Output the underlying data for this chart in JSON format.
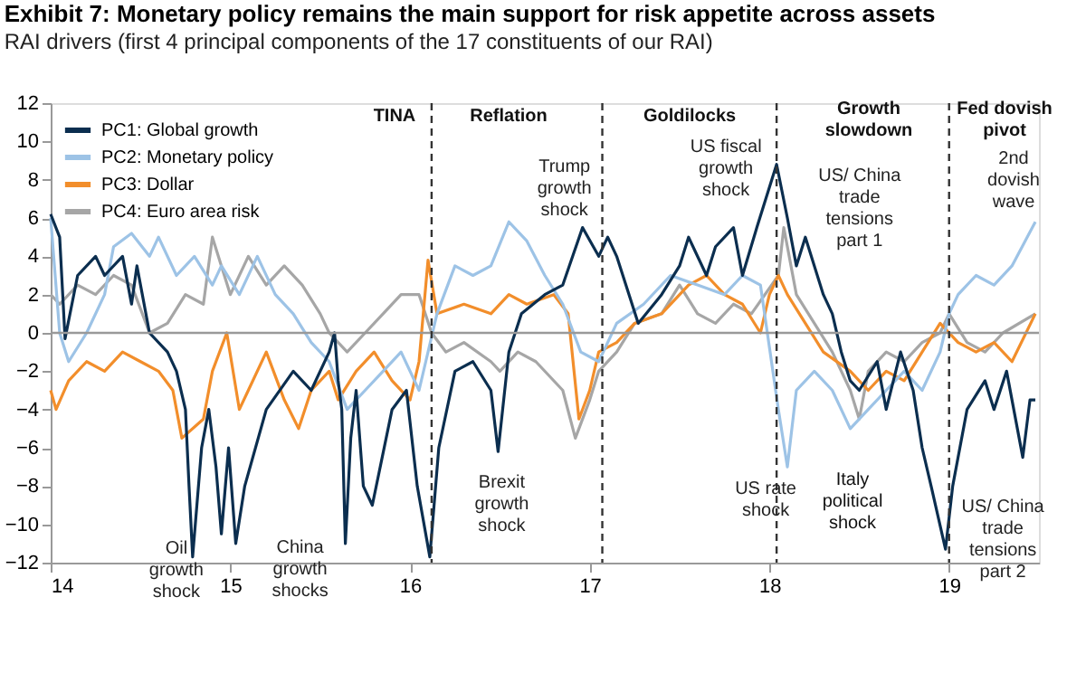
{
  "chart_data": {
    "type": "line",
    "title": "Exhibit 7: Monetary policy remains the main support for risk appetite across assets",
    "subtitle": "RAI drivers (first 4 principal components of the 17 constituents of our RAI)",
    "xlim": [
      14,
      19.5
    ],
    "xticks": [
      14,
      15,
      16,
      17,
      18,
      19
    ],
    "ylim": [
      -12,
      12
    ],
    "yticks": [
      -12,
      -10,
      -8,
      -6,
      -4,
      -2,
      0,
      2,
      4,
      6,
      8,
      10,
      12
    ],
    "grid": false,
    "legend": "top left",
    "line_style": "solid",
    "series": [
      {
        "name": "PC1: Global growth",
        "color": "#0b2e4f",
        "x": [
          14.0,
          14.05,
          14.08,
          14.15,
          14.25,
          14.3,
          14.4,
          14.45,
          14.48,
          14.55,
          14.65,
          14.7,
          14.75,
          14.77,
          14.79,
          14.84,
          14.88,
          14.92,
          14.95,
          14.99,
          15.03,
          15.08,
          15.2,
          15.35,
          15.45,
          15.55,
          15.58,
          15.6,
          15.62,
          15.64,
          15.67,
          15.7,
          15.74,
          15.79,
          15.9,
          15.98,
          16.04,
          16.11,
          16.16,
          16.25,
          16.35,
          16.45,
          16.49,
          16.55,
          16.62,
          16.75,
          16.85,
          16.96,
          17.05,
          17.1,
          17.15,
          17.27,
          17.4,
          17.5,
          17.55,
          17.65,
          17.7,
          17.8,
          17.85,
          17.93,
          17.98,
          18.04,
          18.1,
          18.15,
          18.2,
          18.3,
          18.35,
          18.4,
          18.45,
          18.5,
          18.6,
          18.65,
          18.73,
          18.8,
          18.85,
          18.9,
          18.98,
          19.02,
          19.1,
          19.2,
          19.25,
          19.32,
          19.41,
          19.45,
          19.48
        ],
        "values": [
          6.2,
          5,
          -0.3,
          3,
          4,
          3,
          4,
          1.5,
          3.5,
          0,
          -1,
          -2,
          -4,
          -8,
          -11.7,
          -6,
          -4,
          -7,
          -10.5,
          -6,
          -11,
          -8,
          -4,
          -2,
          -3,
          -1,
          0,
          -2.5,
          -4,
          -11,
          -5.5,
          -3,
          -8,
          -9,
          -4,
          -3,
          -8,
          -11.7,
          -6,
          -2,
          -1.5,
          -3,
          -6.2,
          -1,
          1,
          2,
          2.5,
          5.5,
          4,
          5,
          4,
          0.5,
          2,
          3.5,
          5,
          3,
          4.5,
          5.5,
          3,
          5.5,
          7,
          8.8,
          6,
          3.5,
          5,
          2,
          1,
          -1,
          -2.5,
          -3,
          -1.5,
          -4,
          -1,
          -3,
          -6,
          -8,
          -11.3,
          -8,
          -4,
          -2.5,
          -4,
          -2,
          -6.5,
          -3.5,
          -3.5
        ]
      },
      {
        "name": "PC2: Monetary policy",
        "color": "#9dc3e6",
        "x": [
          14.0,
          14.05,
          14.1,
          14.2,
          14.3,
          14.35,
          14.45,
          14.55,
          14.6,
          14.7,
          14.8,
          14.9,
          14.95,
          15.05,
          15.15,
          15.25,
          15.35,
          15.45,
          15.55,
          15.65,
          15.75,
          15.85,
          15.95,
          16.05,
          16.15,
          16.25,
          16.35,
          16.45,
          16.55,
          16.65,
          16.75,
          16.85,
          16.95,
          17.05,
          17.15,
          17.3,
          17.45,
          17.6,
          17.75,
          17.85,
          17.95,
          18.05,
          18.1,
          18.15,
          18.25,
          18.35,
          18.45,
          18.55,
          18.65,
          18.75,
          18.85,
          18.95,
          19.0,
          19.05,
          19.15,
          19.25,
          19.35,
          19.48
        ],
        "values": [
          6,
          0,
          -1.5,
          0,
          2,
          4.5,
          5.2,
          4,
          5,
          3,
          4,
          2.5,
          3.5,
          2,
          4,
          2,
          1,
          -0.5,
          -1.5,
          -4,
          -3,
          -2,
          -1,
          -3,
          1,
          3.5,
          3,
          3.5,
          5.8,
          4.8,
          3,
          1.5,
          -1,
          -1.5,
          0.5,
          1.5,
          3,
          2.5,
          2,
          3,
          2.5,
          -4,
          -7,
          -3,
          -2,
          -3,
          -5,
          -4,
          -3,
          -2,
          -3,
          -1,
          1,
          2,
          3,
          2.5,
          3.5,
          5.8
        ]
      },
      {
        "name": "PC3: Dollar",
        "color": "#f28e2b",
        "x": [
          14.0,
          14.03,
          14.1,
          14.2,
          14.3,
          14.4,
          14.5,
          14.6,
          14.68,
          14.73,
          14.85,
          14.9,
          14.98,
          15.05,
          15.1,
          15.2,
          15.3,
          15.38,
          15.45,
          15.55,
          15.6,
          15.7,
          15.8,
          15.9,
          16.0,
          16.05,
          16.1,
          16.15,
          16.3,
          16.45,
          16.55,
          16.65,
          16.8,
          16.88,
          16.94,
          17.0,
          17.05,
          17.15,
          17.25,
          17.4,
          17.55,
          17.65,
          17.75,
          17.85,
          17.95,
          18.0,
          18.05,
          18.1,
          18.2,
          18.3,
          18.45,
          18.55,
          18.65,
          18.75,
          18.85,
          18.95,
          19.05,
          19.15,
          19.25,
          19.35,
          19.48
        ],
        "values": [
          -3,
          -4,
          -2.5,
          -1.5,
          -2,
          -1,
          -1.5,
          -2,
          -3,
          -5.5,
          -4.5,
          -2,
          0,
          -4,
          -3,
          -1,
          -3.5,
          -5,
          -3,
          -2,
          -3.5,
          -2,
          -1,
          -2.5,
          -3.5,
          -1.5,
          3.8,
          1,
          1.5,
          1,
          2,
          1.5,
          2,
          1,
          -4.5,
          -3,
          -1,
          -0.5,
          0.5,
          1,
          2.5,
          3,
          2,
          1.5,
          0,
          2,
          3,
          2,
          0.5,
          -1,
          -2,
          -3,
          -2,
          -2.5,
          -1,
          0.5,
          -0.5,
          -1,
          -0.5,
          -1.5,
          1
        ]
      },
      {
        "name": "PC4: Euro area risk",
        "color": "#a6a6a6",
        "x": [
          14.0,
          14.05,
          14.15,
          14.25,
          14.35,
          14.45,
          14.55,
          14.65,
          14.75,
          14.85,
          14.9,
          15.0,
          15.1,
          15.2,
          15.3,
          15.4,
          15.5,
          15.55,
          15.65,
          15.75,
          15.85,
          15.95,
          16.05,
          16.12,
          16.2,
          16.3,
          16.45,
          16.5,
          16.6,
          16.7,
          16.85,
          16.92,
          17.0,
          17.05,
          17.15,
          17.25,
          17.4,
          17.5,
          17.6,
          17.7,
          17.8,
          17.9,
          18.05,
          18.08,
          18.15,
          18.25,
          18.35,
          18.45,
          18.5,
          18.55,
          18.65,
          18.75,
          18.85,
          18.95,
          19.0,
          19.1,
          19.2,
          19.3,
          19.48
        ],
        "values": [
          2,
          1.5,
          2.5,
          2,
          3,
          2.5,
          0,
          0.5,
          2,
          1.5,
          5,
          2,
          4,
          2.5,
          3.5,
          2.5,
          1,
          0,
          -1,
          0,
          1,
          2,
          2,
          0,
          -1,
          -0.5,
          -1.5,
          -2,
          -1,
          -1.5,
          -3,
          -5.5,
          -3.5,
          -2,
          -1,
          0.5,
          1,
          2.5,
          1,
          0.5,
          1.5,
          1,
          3,
          5.5,
          2,
          0.5,
          -1,
          -3,
          -4.5,
          -2,
          -1,
          -1.5,
          -0.5,
          0,
          1,
          -0.5,
          -1,
          0,
          1
        ]
      }
    ],
    "ref_lines": [
      {
        "axis": "y",
        "value": 0,
        "color": "#999999",
        "line_style": "solid"
      },
      {
        "axis": "x",
        "value": 16.12,
        "color": "#333333",
        "line_style": "dashed"
      },
      {
        "axis": "x",
        "value": 17.07,
        "color": "#333333",
        "line_style": "dashed"
      },
      {
        "axis": "x",
        "value": 18.04,
        "color": "#333333",
        "line_style": "dashed"
      },
      {
        "axis": "x",
        "value": 19.0,
        "color": "#333333",
        "line_style": "dashed"
      }
    ],
    "annotations": [
      "TINA",
      "Reflation",
      "Goldilocks",
      "Growth\nslowdown",
      "Fed dovish\npivot",
      "Italy\npolitical\nshock",
      {
        "text": "Trump\ngrowth\nshock",
        "x": 16.96,
        "y": 5.5
      },
      {
        "text": "US fiscal\ngrowth\nshock",
        "x": 18.04,
        "y": 8.8
      },
      {
        "text": "US/ China\ntrade\ntensions\npart 1",
        "x": 18.3,
        "y": 2
      },
      {
        "text": "2nd\ndovish\nwave",
        "x": 19.48,
        "y": 5.8
      },
      {
        "text": "Oil\ngrowth\nshock",
        "x": 14.79,
        "y": -11.7
      },
      {
        "text": "China\ngrowth\nshocks",
        "x": 15.64,
        "y": -11
      },
      {
        "text": "Brexit\ngrowth\nshock",
        "x": 16.49,
        "y": -6.2
      },
      {
        "text": "US rate\nshock",
        "x": 18.1,
        "y": -7
      },
      {
        "text": "US/ China\ntrade\ntensions\npart 2",
        "x": 19.41,
        "y": -6.5
      }
    ]
  }
}
